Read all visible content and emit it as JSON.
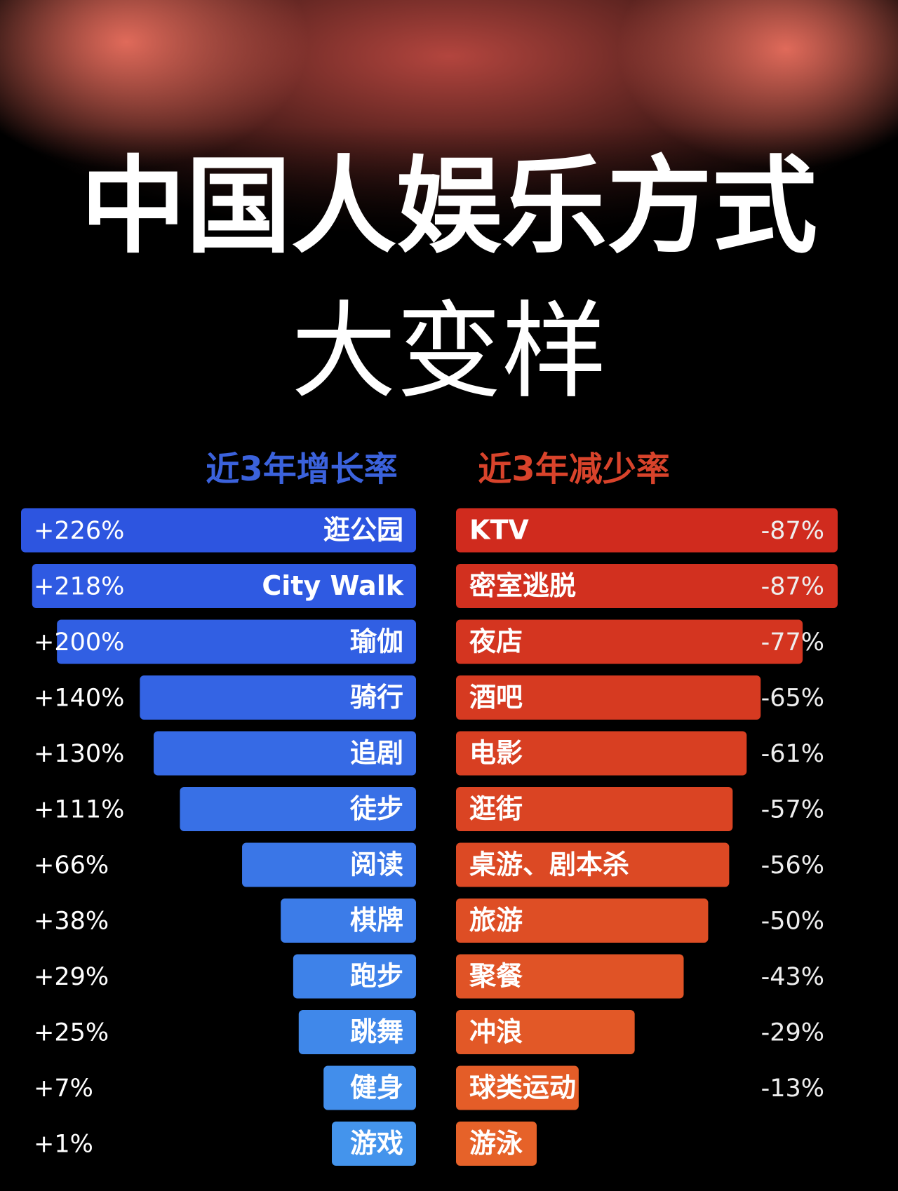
{
  "title": "中国人娱乐方式",
  "subtitle": "大变样",
  "chart_data": [
    {
      "type": "bar",
      "orientation": "horizontal",
      "title": "近3年增长率",
      "title_color": "#3b62dc",
      "categories": [
        "逛公园",
        "City Walk",
        "瑜伽",
        "骑行",
        "追剧",
        "徒步",
        "阅读",
        "棋牌",
        "跑步",
        "跳舞",
        "健身",
        "游戏"
      ],
      "values": [
        226,
        218,
        200,
        140,
        130,
        111,
        66,
        38,
        29,
        25,
        7,
        1
      ],
      "value_labels": [
        "+226%",
        "+218%",
        "+200%",
        "+140%",
        "+130%",
        "+111%",
        "+66%",
        "+38%",
        "+29%",
        "+25%",
        "+7%",
        "+1%"
      ],
      "colors": [
        "#2d55e0",
        "#2f5ae2",
        "#315fe3",
        "#3464e4",
        "#366ae5",
        "#3870e6",
        "#3a76e7",
        "#3c7ce8",
        "#3e82e9",
        "#4088ea",
        "#428eeb",
        "#4494ec"
      ]
    },
    {
      "type": "bar",
      "orientation": "horizontal",
      "title": "近3年减少率",
      "title_color": "#d8432b",
      "categories": [
        "KTV",
        "密室逃脱",
        "夜店",
        "酒吧",
        "电影",
        "逛街",
        "桌游、剧本杀",
        "旅游",
        "聚餐",
        "冲浪",
        "球类运动",
        "游泳"
      ],
      "values": [
        -87,
        -87,
        -77,
        -65,
        -61,
        -57,
        -56,
        -50,
        -43,
        -29,
        -13,
        -1
      ],
      "value_labels": [
        "-87%",
        "-87%",
        "-77%",
        "-65%",
        "-61%",
        "-57%",
        "-56%",
        "-50%",
        "-43%",
        "-29%",
        "-13%",
        null
      ],
      "colors": [
        "#d02b1e",
        "#d2301f",
        "#d43520",
        "#d63a21",
        "#d83f22",
        "#da4423",
        "#dc4924",
        "#de4e25",
        "#e05326",
        "#e25827",
        "#e45d28",
        "#e66229"
      ]
    }
  ]
}
